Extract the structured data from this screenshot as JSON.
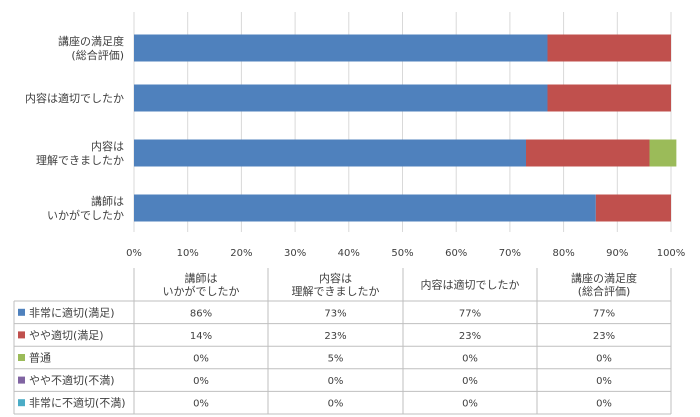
{
  "chart_data": {
    "type": "bar",
    "orientation": "horizontal",
    "stacked": true,
    "percent_stacked": true,
    "categories": [
      [
        "講座の満足度",
        "(総合評価)"
      ],
      [
        "内容は適切でしたか"
      ],
      [
        "内容は",
        "理解できましたか"
      ],
      [
        "講師は",
        "いかがでしたか"
      ]
    ],
    "series": [
      {
        "name": "非常に適切(満足)",
        "color": "#4f81bd",
        "values": [
          77,
          77,
          73,
          86
        ]
      },
      {
        "name": "やや適切(満足)",
        "color": "#c0504d",
        "values": [
          23,
          23,
          23,
          14
        ]
      },
      {
        "name": "普通",
        "color": "#9bbb59",
        "values": [
          0,
          0,
          5,
          0
        ]
      },
      {
        "name": "やや不適切(不満)",
        "color": "#8064a2",
        "values": [
          0,
          0,
          0,
          0
        ]
      },
      {
        "name": "非常に不適切(不満)",
        "color": "#4bacc6",
        "values": [
          0,
          0,
          0,
          0
        ]
      }
    ],
    "xlim": [
      0,
      100
    ],
    "xticks": [
      "0%",
      "10%",
      "20%",
      "30%",
      "40%",
      "50%",
      "60%",
      "70%",
      "80%",
      "90%",
      "100%"
    ],
    "grid": true,
    "data_table": {
      "columns": [
        [
          "講師は",
          "いかがでしたか"
        ],
        [
          "内容は",
          "理解できましたか"
        ],
        [
          "内容は適切でしたか"
        ],
        [
          "講座の満足度",
          "(総合評価)"
        ]
      ],
      "rows": [
        {
          "label": "非常に適切(満足)",
          "cells": [
            "86%",
            "73%",
            "77%",
            "77%"
          ]
        },
        {
          "label": "やや適切(満足)",
          "cells": [
            "14%",
            "23%",
            "23%",
            "23%"
          ]
        },
        {
          "label": "普通",
          "cells": [
            "0%",
            "5%",
            "0%",
            "0%"
          ]
        },
        {
          "label": "やや不適切(不満)",
          "cells": [
            "0%",
            "0%",
            "0%",
            "0%"
          ]
        },
        {
          "label": "非常に不適切(不満)",
          "cells": [
            "0%",
            "0%",
            "0%",
            "0%"
          ]
        }
      ]
    }
  }
}
